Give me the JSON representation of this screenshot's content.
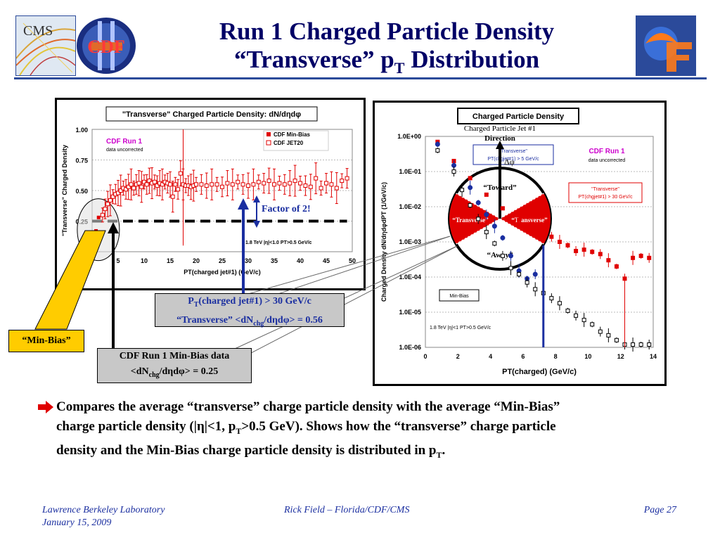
{
  "header": {
    "title_line1": "Run 1 Charged Particle Density",
    "title_line2_main": "“Transverse” p",
    "title_line2_sub": "T",
    "title_line2_tail": " Distribution",
    "logo_cms": "CMS",
    "logo_cdf": "CDF"
  },
  "chart_data": [
    {
      "type": "scatter",
      "title": "\"Transverse\" Charged Particle Density: dN/dηdφ",
      "xlabel": "PT(charged jet#1)  (GeV/c)",
      "ylabel": "\"Transverse\" Charged Density",
      "xlim": [
        0,
        50
      ],
      "ylim": [
        0,
        1
      ],
      "xticks": [
        0,
        5,
        10,
        15,
        20,
        25,
        30,
        35,
        40,
        45,
        50
      ],
      "xtick_labels": [
        "0",
        "5",
        "10",
        "15",
        "20",
        "25",
        "30",
        "35",
        "40",
        "45",
        "50"
      ],
      "yticks": [
        0,
        0.25,
        0.5,
        0.75,
        1.0
      ],
      "ytick_labels": [
        "0.00",
        "0.25",
        "0.50",
        "0.75",
        "1.00"
      ],
      "legend_position": "top-right",
      "annotations": {
        "label": "CDF Run 1",
        "sublabel": "data uncorrected",
        "kinematics": "1.8 TeV |η|<1.0 PT>0.5 GeV/c",
        "factor": "Factor of 2!"
      },
      "reference_line": {
        "y": 0.25,
        "style": "dashed"
      },
      "series": [
        {
          "name": "CDF Min-Bias",
          "color": "#e00000",
          "marker": "filled-square",
          "x": [
            0.25,
            0.75,
            1.25
          ],
          "y": [
            0.06,
            0.17,
            0.28
          ]
        },
        {
          "name": "CDF JET20",
          "color": "#e00000",
          "marker": "open-square",
          "x": [
            2,
            2.5,
            3,
            3.5,
            4,
            4.5,
            5,
            5.5,
            6,
            6.5,
            7,
            7.5,
            8,
            8.5,
            9,
            9.5,
            10,
            10.5,
            11,
            11.5,
            12,
            12.5,
            13,
            13.5,
            14,
            14.5,
            15,
            15.5,
            16,
            16.5,
            17,
            17.5,
            18,
            18.5,
            19,
            19.5,
            20,
            21,
            22,
            23,
            24,
            25,
            26,
            27,
            28,
            29,
            30,
            31,
            32,
            33,
            34,
            35,
            36,
            37,
            38,
            39,
            40,
            41,
            42,
            43,
            44,
            45,
            46,
            47,
            48,
            49
          ],
          "y": [
            0.3,
            0.35,
            0.39,
            0.42,
            0.45,
            0.47,
            0.48,
            0.5,
            0.52,
            0.51,
            0.53,
            0.55,
            0.52,
            0.55,
            0.56,
            0.53,
            0.57,
            0.55,
            0.58,
            0.56,
            0.57,
            0.54,
            0.56,
            0.55,
            0.57,
            0.56,
            0.55,
            0.45,
            0.55,
            0.51,
            0.64,
            0.55,
            0.54,
            0.54,
            0.53,
            0.54,
            0.55,
            0.55,
            0.54,
            0.55,
            0.55,
            0.53,
            0.56,
            0.55,
            0.57,
            0.55,
            0.54,
            0.55,
            0.57,
            0.56,
            0.58,
            0.55,
            0.56,
            0.55,
            0.56,
            0.58,
            0.56,
            0.54,
            0.53,
            0.6,
            0.52,
            0.56,
            0.55,
            0.52,
            0.58,
            0.6
          ]
        }
      ]
    },
    {
      "type": "scatter",
      "title": "Charged Particle Density",
      "xlabel": "PT(charged)  (GeV/c)",
      "ylabel": "Charged Density dN/dηdφdPT (1/GeV/c)",
      "xlim": [
        0,
        14
      ],
      "ylog": true,
      "ylim": [
        1e-06,
        1
      ],
      "xticks": [
        0,
        2,
        4,
        6,
        8,
        10,
        12,
        14
      ],
      "xtick_labels": [
        "0",
        "2",
        "4",
        "6",
        "8",
        "10",
        "12",
        "14"
      ],
      "yticks": [
        1e-06,
        1e-05,
        0.0001,
        0.001,
        0.01,
        0.1,
        1
      ],
      "ytick_labels": [
        "1.0E-06",
        "1.0E-05",
        "1.0E-04",
        "1.0E-03",
        "1.0E-02",
        "1.0E-01",
        "1.0E+00"
      ],
      "annotations": {
        "label": "CDF Run 1",
        "sublabel": "data uncorrected",
        "kinematics": "1.8 TeV |η|<1 PT>0.5 GeV/c",
        "legend_transverse_red": "\"Transverse\" PT(chgjet#1) > 30 GeV/c",
        "legend_transverse_blue": "\"Transverse\" PT(chgjet#1) > 5 GeV/c",
        "legend_minbias": "Min-Bias",
        "jet_direction_line1": "Charged Particle Jet #1",
        "jet_direction_line2": "Direction",
        "delta_phi": "Δφ",
        "toward": "“Toward”",
        "transverse_left": "“Transverse”",
        "transverse_right": "“Transverse”",
        "away": "“Away”"
      },
      "series": [
        {
          "name": "\"Transverse\" PT(chgjet#1) > 30 GeV/c",
          "color": "#e00000",
          "marker": "filled-square",
          "x": [
            0.75,
            1.75,
            2.75,
            3.75,
            4.75,
            5.75,
            6.75,
            7.75,
            8.25,
            8.75,
            9.25,
            9.75,
            10.25,
            10.75,
            11.25,
            11.75,
            12.25,
            12.75,
            13.25,
            13.75
          ],
          "y": [
            0.7,
            0.2,
            0.065,
            0.022,
            0.009,
            0.0042,
            0.0024,
            0.0014,
            0.001,
            0.0008,
            0.00055,
            0.0006,
            0.00052,
            0.00045,
            0.0003,
            0.0002,
            9e-05,
            0.00035,
            0.0004,
            0.00035
          ]
        },
        {
          "name": "\"Transverse\" PT(chgjet#1) > 5 GeV/c",
          "color": "#1a2ea0",
          "marker": "filled-circle",
          "x": [
            0.75,
            1.75,
            2.75,
            3.25,
            3.75,
            4.25,
            4.75,
            5.25,
            5.75,
            6.25,
            6.75
          ],
          "y": [
            0.6,
            0.15,
            0.035,
            0.013,
            0.006,
            0.0028,
            0.0013,
            0.0004,
            0.00015,
            9e-05,
            0.00012
          ]
        },
        {
          "name": "Min-Bias",
          "color": "#000000",
          "marker": "open-square",
          "x": [
            0.75,
            1.75,
            2.25,
            2.75,
            3.25,
            3.75,
            4.25,
            4.75,
            5.25,
            5.75,
            6.25,
            6.75,
            7.25,
            7.75,
            8.25,
            8.75,
            9.25,
            9.75,
            10.25,
            10.75,
            11.25,
            11.75,
            12.25,
            12.75,
            13.25,
            13.75
          ],
          "y": [
            0.4,
            0.1,
            0.03,
            0.011,
            0.0045,
            0.0019,
            0.0009,
            0.0004,
            0.00018,
            0.00012,
            7e-05,
            4.5e-05,
            3.5e-05,
            2.5e-05,
            1.8e-05,
            1.1e-05,
            8e-06,
            6e-06,
            4.5e-06,
            2.8e-06,
            2.2e-06,
            1.6e-06,
            1.2e-06,
            1.2e-06,
            1.2e-06,
            1.2e-06
          ]
        }
      ]
    }
  ],
  "callouts": {
    "minbias_label": "“Min-Bias”",
    "cdf_minbias_line1": "CDF Run 1 Min-Bias data",
    "cdf_minbias_line2_pre": "<dN",
    "cdf_minbias_line2_sub": "chg",
    "cdf_minbias_line2_post": "/dηdφ> = 0.25",
    "pt_box_line1_pre": "P",
    "pt_box_line1_sub": "T",
    "pt_box_line1_post": "(charged jet#1) > 30 GeV/c",
    "pt_box_line2_pre": "“Transverse” <dN",
    "pt_box_line2_sub": "chg",
    "pt_box_line2_post": "/dηdφ> = 0.56"
  },
  "bullet": {
    "line1": "Compares the average “transverse” charge particle density with the average “Min-Bias”",
    "line2_pre": "charge particle density (|η|<1, p",
    "line2_sub": "T",
    "line2_post": ">0.5 GeV).  Shows how the “transverse” charge particle",
    "line3_pre": "density and the Min-Bias charge particle density is distributed in p",
    "line3_sub": "T",
    "line3_post": "."
  },
  "footer": {
    "left_line1": "Lawrence Berkeley Laboratory",
    "left_line2": "January 15, 2009",
    "center": "Rick Field – Florida/CDF/CMS",
    "right": "Page 27"
  },
  "colors": {
    "title": "#000066",
    "accent_blue": "#2b4a9a",
    "red": "#e00000",
    "navy": "#1a2ea0",
    "callout_yellow": "#ffcc00"
  }
}
